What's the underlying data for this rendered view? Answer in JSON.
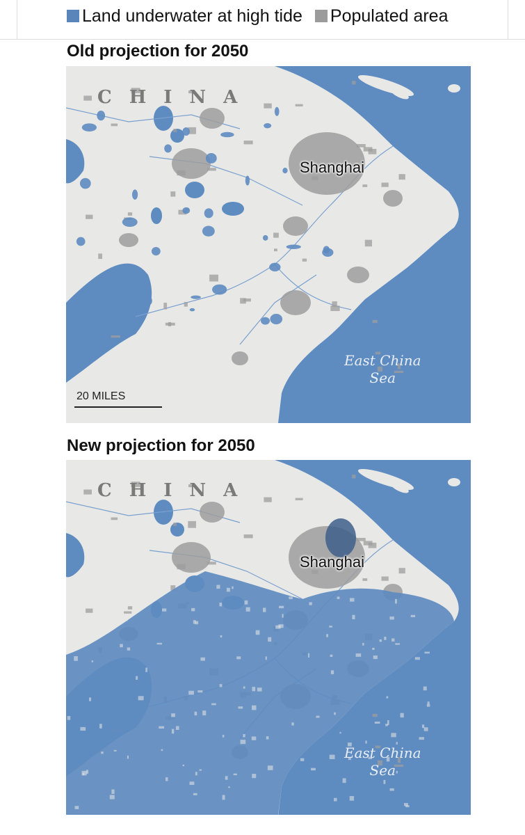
{
  "legend": {
    "underwater": {
      "label": "Land underwater at high tide",
      "color": "#5a85ba"
    },
    "populated": {
      "label": "Populated area",
      "color": "#9b9b9b"
    }
  },
  "panels": [
    {
      "title": "Old projection for 2050",
      "country_label": "CHINA",
      "city_label": "Shanghai",
      "sea_label": [
        "East China",
        "Sea"
      ],
      "scale_label": "20 MILES",
      "flood_extent": "low"
    },
    {
      "title": "New projection for 2050",
      "country_label": "CHINA",
      "city_label": "Shanghai",
      "sea_label": [
        "East China",
        "Sea"
      ],
      "flood_extent": "high"
    }
  ],
  "colors": {
    "sea": "#5e8bc0",
    "land": "#e8e8e6",
    "populated": "#9d9d9d"
  }
}
